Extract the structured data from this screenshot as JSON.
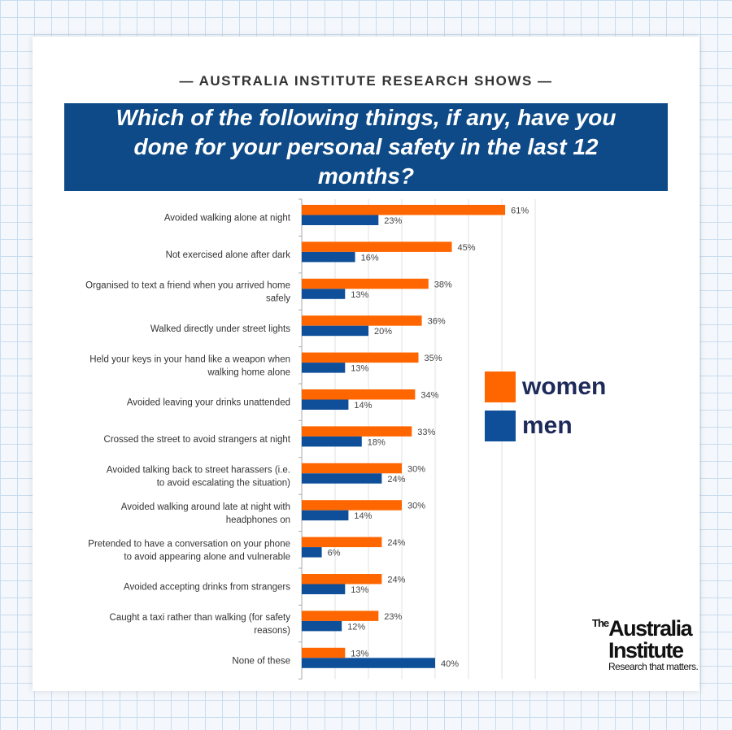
{
  "header": {
    "kicker": "— AUSTRALIA INSTITUTE RESEARCH SHOWS —"
  },
  "chart_data": {
    "type": "bar",
    "orientation": "horizontal",
    "title": "Which of the following things, if any, have you done for your personal safety in the last 12 months?",
    "categories": [
      "Avoided walking alone at night",
      "Not exercised alone after dark",
      "Organised to text a friend when you arrived home safely",
      "Walked directly under street lights",
      "Held your keys in your hand like a weapon when walking home alone",
      "Avoided leaving your drinks unattended",
      "Crossed the street to avoid strangers at night",
      "Avoided talking back to street harassers (i.e. to avoid escalating the situation)",
      "Avoided walking around late at night with headphones on",
      "Pretended to have a conversation on your phone to avoid appearing alone and vulnerable",
      "Avoided accepting drinks from strangers",
      "Caught a taxi rather than walking (for safety reasons)",
      "None of these"
    ],
    "series": [
      {
        "name": "women",
        "color": "#ff6600",
        "values": [
          61,
          45,
          38,
          36,
          35,
          34,
          33,
          30,
          30,
          24,
          24,
          23,
          13
        ]
      },
      {
        "name": "men",
        "color": "#0f4f9a",
        "values": [
          23,
          16,
          13,
          20,
          13,
          14,
          18,
          24,
          14,
          6,
          13,
          12,
          40
        ]
      }
    ],
    "value_suffix": "%",
    "xlim": [
      0,
      70
    ],
    "grid": true,
    "legend_position": "right"
  },
  "legend": {
    "women": "women",
    "men": "men"
  },
  "logo": {
    "the": "The",
    "line1": "Australia",
    "line2": "Institute",
    "tagline": "Research that matters."
  }
}
